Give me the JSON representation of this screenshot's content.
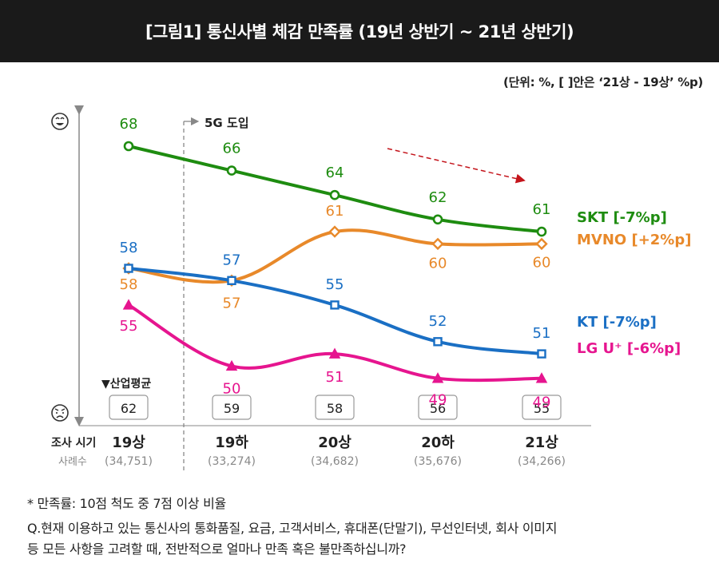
{
  "title": "[그림1] 통신사별 체감 만족률 (19년 상반기 ~ 21년 상반기)",
  "unit_note": "(단위: %, [   ]안은 ‘21상 - 19상’ %p)",
  "annotation_5g": "5G 도입",
  "industry_avg_label": "▼산업평균",
  "survey_period_label": "조사 시기",
  "sample_label": "사례수",
  "footnote_1": "* 만족률: 10점 척도 중 7점 이상 비율",
  "footnote_2_line1": "Q.현재 이용하고 있는 통신사의 통화품질, 요금, 고객서비스, 휴대폰(단말기), 무선인터넷, 회사 이미지",
  "footnote_2_line2": "등 모든 사항을 고려할 때, 전반적으로 얼마나 만족 혹은 불만족하십니까?",
  "icons": {
    "top": "happy-face-icon",
    "bottom": "unhappy-face-icon"
  },
  "chart_data": {
    "type": "line",
    "categories": [
      "19상",
      "19하",
      "20상",
      "20하",
      "21상"
    ],
    "sample_sizes": [
      "(34,751)",
      "(33,274)",
      "(34,682)",
      "(35,676)",
      "(34,266)"
    ],
    "industry_average": [
      62,
      59,
      58,
      56,
      55
    ],
    "series": [
      {
        "name": "SKT",
        "change": "[-7%p]",
        "values": [
          68,
          66,
          64,
          62,
          61
        ],
        "color": "#1e8c10",
        "marker": "circle"
      },
      {
        "name": "MVNO",
        "change": "[+2%p]",
        "values": [
          58,
          57,
          61,
          60,
          60
        ],
        "color": "#e8892a",
        "marker": "diamond"
      },
      {
        "name": "KT",
        "change": "[-7%p]",
        "values": [
          58,
          57,
          55,
          52,
          51
        ],
        "color": "#1a6fc4",
        "marker": "square"
      },
      {
        "name": "LG U⁺",
        "change": "[-6%p]",
        "values": [
          55,
          50,
          51,
          49,
          49
        ],
        "color": "#e6158f",
        "marker": "triangle"
      }
    ]
  }
}
